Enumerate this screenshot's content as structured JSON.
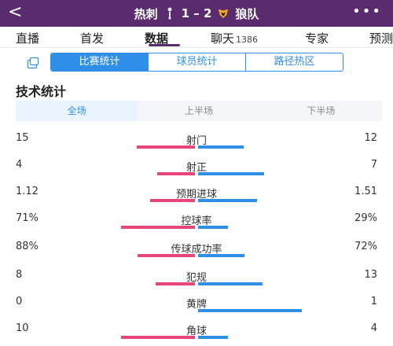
{
  "header": {
    "back_glyph": "<",
    "home_team": "热刺",
    "score": "1 – 2",
    "away_team": "狼队",
    "more_glyph": "•••",
    "accent_color": "#5a2c6e"
  },
  "tabs": [
    {
      "label": "直播",
      "count": ""
    },
    {
      "label": "首发",
      "count": ""
    },
    {
      "label": "数据",
      "count": "",
      "active": true
    },
    {
      "label": "聊天",
      "count": "1386"
    },
    {
      "label": "专家",
      "count": ""
    },
    {
      "label": "预测",
      "count": ""
    }
  ],
  "segments": [
    {
      "label": "比赛统计",
      "active": true
    },
    {
      "label": "球员统计",
      "active": false
    },
    {
      "label": "路径热区",
      "active": false
    }
  ],
  "section_title": "技术统计",
  "periods": [
    {
      "label": "全场",
      "active": true
    },
    {
      "label": "上半场",
      "active": false
    },
    {
      "label": "下半场",
      "active": false
    }
  ],
  "colors": {
    "home": "#e8457a",
    "away": "#2f8fe8"
  },
  "stats": [
    {
      "label": "射门",
      "home": "15",
      "away": "12",
      "home_share": 0.56,
      "away_share": 0.44
    },
    {
      "label": "射正",
      "home": "4",
      "away": "7",
      "home_share": 0.36,
      "away_share": 0.64
    },
    {
      "label": "预期进球",
      "home": "1.12",
      "away": "1.51",
      "home_share": 0.43,
      "away_share": 0.57
    },
    {
      "label": "控球率",
      "home": "71%",
      "away": "29%",
      "home_share": 0.71,
      "away_share": 0.29
    },
    {
      "label": "传球成功率",
      "home": "88%",
      "away": "72%",
      "home_share": 0.55,
      "away_share": 0.45
    },
    {
      "label": "犯规",
      "home": "8",
      "away": "13",
      "home_share": 0.38,
      "away_share": 0.62
    },
    {
      "label": "黄牌",
      "home": "0",
      "away": "1",
      "home_share": 0.0,
      "away_share": 1.0
    },
    {
      "label": "角球",
      "home": "10",
      "away": "4",
      "home_share": 0.71,
      "away_share": 0.29
    }
  ]
}
